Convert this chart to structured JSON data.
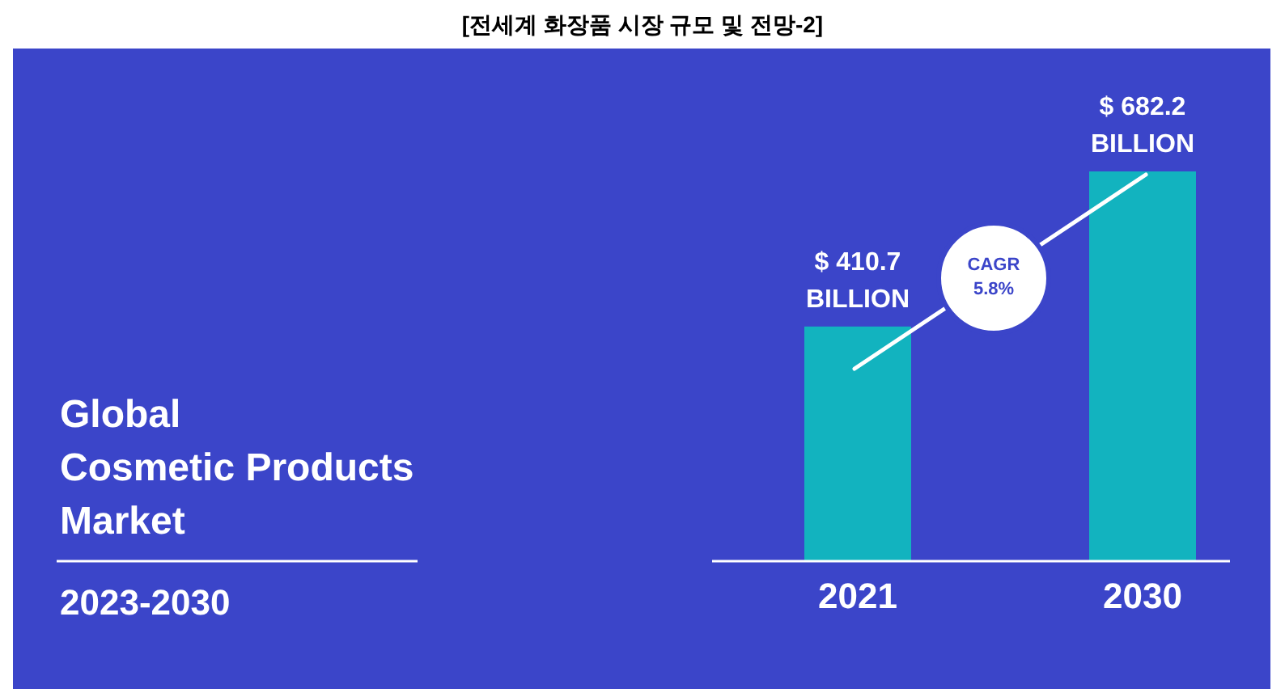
{
  "chart_data": {
    "type": "bar",
    "title": "[전세계 화장품 시장 규모 및 전망-2]",
    "subtitle": "Global\nCosmetic Products\nMarket",
    "categories": [
      "2021",
      "2030"
    ],
    "values": [
      410.7,
      682.2
    ],
    "value_labels": [
      "$ 410.7 BILLION",
      "$ 682.2 BILLION"
    ],
    "color": "#12b3bf",
    "annotations": [
      "2023-2030",
      "CAGR 5.8%"
    ]
  }
}
